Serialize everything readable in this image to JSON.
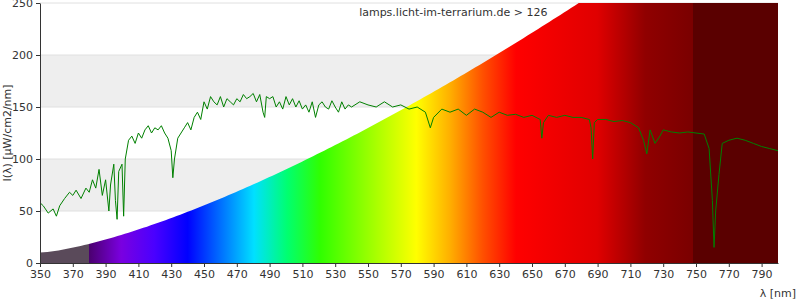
{
  "chart_data": {
    "type": "line",
    "title": "lamps.licht-im-terrarium.de > 126",
    "x_label": "λ [nm]",
    "y_label": "I(λ) [µW/cm2/nm]",
    "xlim": [
      350,
      800
    ],
    "ylim": [
      0,
      250
    ],
    "xticks": [
      350,
      370,
      390,
      410,
      430,
      450,
      470,
      490,
      510,
      530,
      550,
      570,
      590,
      610,
      630,
      650,
      670,
      690,
      710,
      730,
      750,
      770,
      790
    ],
    "yticks": [
      0,
      50,
      100,
      150,
      200,
      250
    ],
    "grid": true,
    "series": [
      {
        "color": "#008000",
        "x": [
          350,
          352,
          355,
          358,
          360,
          362,
          365,
          368,
          370,
          372,
          375,
          378,
          380,
          382,
          384,
          386,
          388,
          390,
          392,
          393,
          395,
          396,
          397,
          398,
          400,
          401,
          402,
          404,
          406,
          408,
          410,
          412,
          414,
          416,
          418,
          420,
          422,
          424,
          426,
          428,
          430,
          431,
          432,
          434,
          436,
          438,
          440,
          442,
          444,
          446,
          448,
          450,
          452,
          454,
          456,
          458,
          460,
          462,
          464,
          466,
          468,
          470,
          472,
          474,
          476,
          478,
          480,
          482,
          484,
          486,
          487,
          488,
          490,
          492,
          494,
          496,
          498,
          500,
          502,
          504,
          506,
          508,
          510,
          512,
          514,
          516,
          518,
          520,
          522,
          524,
          526,
          528,
          530,
          532,
          534,
          536,
          538,
          540,
          545,
          550,
          555,
          560,
          565,
          570,
          575,
          580,
          585,
          588,
          590,
          595,
          600,
          605,
          610,
          615,
          620,
          625,
          630,
          635,
          640,
          645,
          650,
          655,
          656,
          657,
          660,
          665,
          670,
          675,
          680,
          685,
          686,
          687,
          688,
          690,
          695,
          700,
          705,
          710,
          715,
          718,
          720,
          722,
          725,
          728,
          730,
          735,
          740,
          745,
          750,
          755,
          758,
          760,
          761,
          762,
          764,
          766,
          770,
          775,
          780,
          785,
          790,
          795,
          800
        ],
        "values": [
          58,
          55,
          48,
          52,
          45,
          55,
          62,
          68,
          65,
          70,
          62,
          72,
          68,
          80,
          72,
          90,
          65,
          80,
          50,
          75,
          95,
          60,
          42,
          88,
          95,
          45,
          100,
          118,
          122,
          115,
          125,
          120,
          128,
          132,
          125,
          130,
          128,
          132,
          125,
          120,
          108,
          82,
          100,
          120,
          125,
          130,
          135,
          128,
          140,
          145,
          138,
          155,
          148,
          160,
          155,
          152,
          160,
          150,
          158,
          155,
          152,
          158,
          155,
          162,
          158,
          160,
          163,
          155,
          162,
          145,
          140,
          160,
          158,
          160,
          150,
          155,
          148,
          160,
          152,
          158,
          150,
          156,
          148,
          152,
          145,
          155,
          140,
          152,
          155,
          150,
          148,
          156,
          150,
          145,
          155,
          148,
          152,
          150,
          155,
          152,
          150,
          155,
          150,
          152,
          148,
          150,
          145,
          130,
          140,
          148,
          145,
          148,
          142,
          148,
          145,
          140,
          145,
          142,
          143,
          140,
          142,
          138,
          120,
          135,
          142,
          140,
          142,
          140,
          140,
          138,
          130,
          100,
          135,
          138,
          138,
          136,
          137,
          135,
          130,
          118,
          105,
          128,
          115,
          122,
          128,
          126,
          125,
          126,
          125,
          124,
          110,
          60,
          15,
          50,
          85,
          115,
          118,
          120,
          118,
          115,
          112,
          110,
          108
        ]
      }
    ]
  }
}
